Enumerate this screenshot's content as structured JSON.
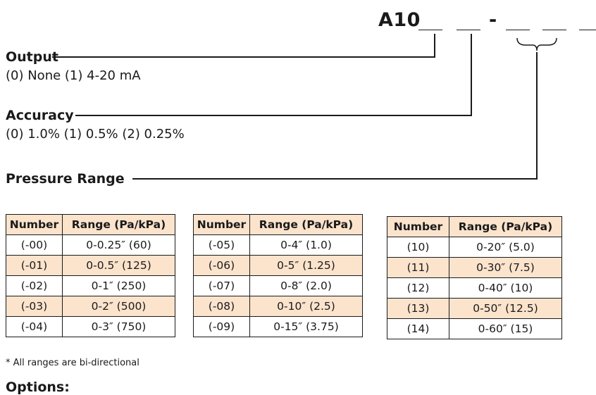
{
  "model": {
    "prefix": "A10",
    "separator": "-"
  },
  "fields": {
    "output": {
      "label": "Output",
      "options": "(0) None (1) 4-20 mA"
    },
    "accuracy": {
      "label": "Accuracy",
      "options": "(0) 1.0% (1) 0.5% (2) 0.25%"
    },
    "pressure_range": {
      "label": "Pressure Range"
    }
  },
  "tables": [
    {
      "headers": [
        "Number",
        "Range (Pa/kPa)"
      ],
      "rows": [
        [
          "(-00)",
          "0-0.25″ (60)"
        ],
        [
          "(-01)",
          "0-0.5″ (125)"
        ],
        [
          "(-02)",
          "0-1″ (250)"
        ],
        [
          "(-03)",
          "0-2″ (500)"
        ],
        [
          "(-04)",
          "0-3″ (750)"
        ]
      ]
    },
    {
      "headers": [
        "Number",
        "Range (Pa/kPa)"
      ],
      "rows": [
        [
          "(-05)",
          "0-4″ (1.0)"
        ],
        [
          "(-06)",
          "0-5″ (1.25)"
        ],
        [
          "(-07)",
          "0-8″ (2.0)"
        ],
        [
          "(-08)",
          "0-10″ (2.5)"
        ],
        [
          "(-09)",
          "0-15″ (3.75)"
        ]
      ]
    },
    {
      "headers": [
        "Number",
        "Range (Pa/kPa)"
      ],
      "rows": [
        [
          "(10)",
          "0-20″ (5.0)"
        ],
        [
          "(11)",
          "0-30″ (7.5)"
        ],
        [
          "(12)",
          "0-40″ (10)"
        ],
        [
          "(13)",
          "0-50″ (12.5)"
        ],
        [
          "(14)",
          "0-60″ (15)"
        ]
      ]
    }
  ],
  "footnote": "* All ranges are bi-directional",
  "options_heading": "Options:",
  "colors": {
    "shade": "#fbe3cc",
    "text": "#1a1a1a"
  }
}
